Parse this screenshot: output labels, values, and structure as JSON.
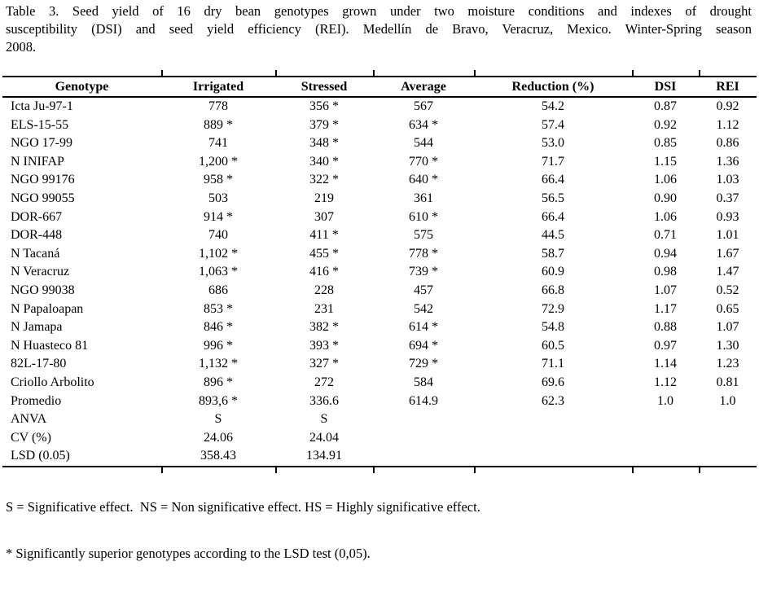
{
  "caption": {
    "lines": [
      "Table 3. Seed yield of 16 dry bean genotypes grown under two moisture conditions and indexes of drought",
      "susceptibility (DSI) and seed yield efficiency (REI). Medellín de Bravo, Veracruz, Mexico. Winter-Spring season",
      "2008."
    ]
  },
  "table": {
    "columns": [
      "Genotype",
      "Irrigated",
      "Stressed",
      "Average",
      "Reduction (%)",
      "DSI",
      "REI"
    ],
    "rows": [
      [
        "Icta Ju-97-1",
        "778",
        "356 *",
        "567",
        "54.2",
        "0.87",
        "0.92"
      ],
      [
        "ELS-15-55",
        "889 *",
        "379 *",
        "634 *",
        "57.4",
        "0.92",
        "1.12"
      ],
      [
        "NGO 17-99",
        "741",
        "348 *",
        "544",
        "53.0",
        "0.85",
        "0.86"
      ],
      [
        "N INIFAP",
        "1,200 *",
        "340 *",
        "770 *",
        "71.7",
        "1.15",
        "1.36"
      ],
      [
        "NGO 99176",
        "958 *",
        "322 *",
        "640 *",
        "66.4",
        "1.06",
        "1.03"
      ],
      [
        "NGO 99055",
        "503",
        "219",
        "361",
        "56.5",
        "0.90",
        "0.37"
      ],
      [
        "DOR-667",
        "914 *",
        "307",
        "610 *",
        "66.4",
        "1.06",
        "0.93"
      ],
      [
        "DOR-448",
        "740",
        "411 *",
        "575",
        "44.5",
        "0.71",
        "1.01"
      ],
      [
        "N Tacaná",
        "1,102 *",
        "455 *",
        "778 *",
        "58.7",
        "0.94",
        "1.67"
      ],
      [
        "N Veracruz",
        "1,063 *",
        "416 *",
        "739 *",
        "60.9",
        "0.98",
        "1.47"
      ],
      [
        "NGO 99038",
        "686",
        "228",
        "457",
        "66.8",
        "1.07",
        "0.52"
      ],
      [
        "N Papaloapan",
        "853 *",
        "231",
        "542",
        "72.9",
        "1.17",
        "0.65"
      ],
      [
        "N Jamapa",
        "846 *",
        "382 *",
        "614 *",
        "54.8",
        "0.88",
        "1.07"
      ],
      [
        "N Huasteco 81",
        "996 *",
        "393 *",
        "694 *",
        "60.5",
        "0.97",
        "1.30"
      ],
      [
        "82L-17-80",
        "1,132 *",
        "327 *",
        "729 *",
        "71.1",
        "1.14",
        "1.23"
      ],
      [
        "Criollo Arbolito",
        "896 *",
        "272",
        "584",
        "69.6",
        "1.12",
        "0.81"
      ],
      [
        "Promedio",
        "893,6 *",
        "336.6",
        "614.9",
        "62.3",
        "1.0",
        "1.0"
      ],
      [
        "ANVA",
        "S",
        "S",
        "",
        "",
        "",
        ""
      ],
      [
        "CV (%)",
        "24.06",
        "24.04",
        "",
        "",
        "",
        ""
      ],
      [
        "LSD (0.05)",
        "358.43",
        "134.91",
        "",
        "",
        "",
        ""
      ]
    ]
  },
  "footnotes": [
    "S = Significative effect.  NS = Non significative effect. HS = Highly significative effect.",
    "* Significantly superior genotypes according to the LSD test (0,05)."
  ]
}
